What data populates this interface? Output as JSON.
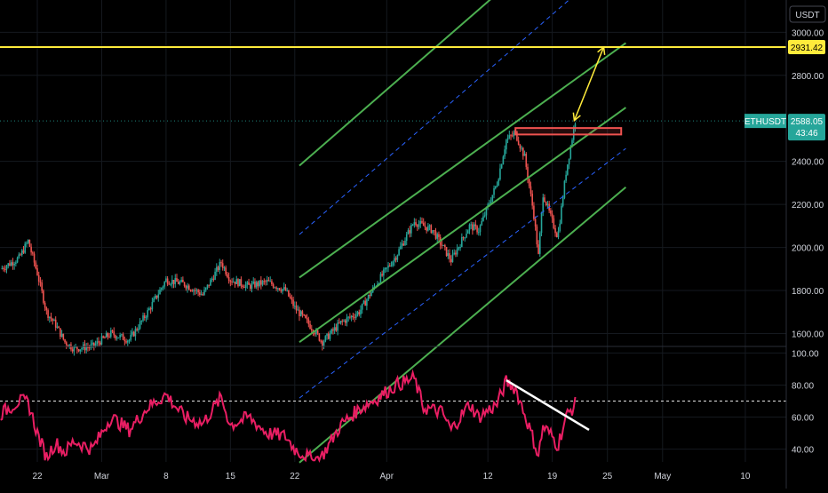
{
  "colors": {
    "background": "#000000",
    "grid": "#15191f",
    "up_candle": "#26a69a",
    "down_candle": "#ef5350",
    "channel": "#4caf50",
    "channel_mid": "#2962ff",
    "resistance": "#ffeb3b",
    "resistance_box": "#ef5350",
    "rsi": "#e91e63",
    "axis_text": "#d1d4dc",
    "ticker_badge": "#26a69a"
  },
  "chart_data": [
    {
      "type": "candlestick",
      "title": "",
      "ylabel": "",
      "ylim": [
        1540,
        3150
      ],
      "x_ticks": [
        {
          "label": "22",
          "day": -10
        },
        {
          "label": "Mar",
          "day": -3
        },
        {
          "label": "8",
          "day": 4
        },
        {
          "label": "15",
          "day": 11
        },
        {
          "label": "22",
          "day": 18
        },
        {
          "label": "Apr",
          "day": 28
        },
        {
          "label": "12",
          "day": 39
        },
        {
          "label": "19",
          "day": 46
        },
        {
          "label": "25",
          "day": 52
        },
        {
          "label": "May",
          "day": 58
        },
        {
          "label": "10",
          "day": 67
        }
      ],
      "y_ticks": [
        1600,
        1800,
        2000,
        2200,
        2400,
        2800,
        3000
      ],
      "currency_label": "USDT",
      "ticker": {
        "symbol": "ETHUSDT",
        "price": "2588.05",
        "countdown": "43:46",
        "value": 2588.05
      },
      "resistance": {
        "label": "2931.42",
        "value": 2931.42
      },
      "price_path": [
        {
          "day": -14,
          "price": 1900
        },
        {
          "day": -12,
          "price": 1950
        },
        {
          "day": -11,
          "price": 2030
        },
        {
          "day": -10,
          "price": 1880
        },
        {
          "day": -9,
          "price": 1700
        },
        {
          "day": -8,
          "price": 1640
        },
        {
          "day": -7,
          "price": 1560
        },
        {
          "day": -6,
          "price": 1530
        },
        {
          "day": -4,
          "price": 1540
        },
        {
          "day": -2,
          "price": 1600
        },
        {
          "day": 0,
          "price": 1570
        },
        {
          "day": 2,
          "price": 1700
        },
        {
          "day": 4,
          "price": 1850
        },
        {
          "day": 6,
          "price": 1830
        },
        {
          "day": 8,
          "price": 1780
        },
        {
          "day": 10,
          "price": 1930
        },
        {
          "day": 11,
          "price": 1850
        },
        {
          "day": 13,
          "price": 1820
        },
        {
          "day": 15,
          "price": 1840
        },
        {
          "day": 17,
          "price": 1800
        },
        {
          "day": 18,
          "price": 1720
        },
        {
          "day": 20,
          "price": 1620
        },
        {
          "day": 21,
          "price": 1560
        },
        {
          "day": 23,
          "price": 1650
        },
        {
          "day": 25,
          "price": 1700
        },
        {
          "day": 27,
          "price": 1840
        },
        {
          "day": 29,
          "price": 1960
        },
        {
          "day": 31,
          "price": 2120
        },
        {
          "day": 33,
          "price": 2080
        },
        {
          "day": 35,
          "price": 1940
        },
        {
          "day": 37,
          "price": 2100
        },
        {
          "day": 38,
          "price": 2080
        },
        {
          "day": 40,
          "price": 2300
        },
        {
          "day": 41,
          "price": 2500
        },
        {
          "day": 42,
          "price": 2530
        },
        {
          "day": 43,
          "price": 2420
        },
        {
          "day": 44,
          "price": 2150
        },
        {
          "day": 44.5,
          "price": 1960
        },
        {
          "day": 45,
          "price": 2250
        },
        {
          "day": 46,
          "price": 2120
        },
        {
          "day": 46.6,
          "price": 2050
        },
        {
          "day": 47.5,
          "price": 2350
        },
        {
          "day": 48.5,
          "price": 2588
        }
      ],
      "channel": {
        "start_day": 18.5,
        "end_day": 54,
        "lines": [
          {
            "start": 2380,
            "end": 3700,
            "style": "solid"
          },
          {
            "start": 2060,
            "end": 3380,
            "style": "dashed"
          },
          {
            "start": 1860,
            "end": 2950,
            "style": "solid"
          },
          {
            "start": 1560,
            "end": 2650,
            "style": "solid"
          },
          {
            "start": 1300,
            "end": 2460,
            "style": "dashed"
          },
          {
            "start": 1000,
            "end": 2280,
            "style": "solid"
          }
        ]
      },
      "resistance_box": {
        "day_start": 42,
        "day_end": 53.5,
        "price_low": 2525,
        "price_high": 2555
      },
      "projection_arrow": {
        "from_day": 48.4,
        "from_price": 2590,
        "to_day": 51.6,
        "to_price": 2931.42
      }
    },
    {
      "type": "line",
      "title": "",
      "ylabel": "",
      "ylim": [
        32,
        103
      ],
      "y_ticks": [
        40,
        60,
        80,
        100
      ],
      "overbought_level": 70,
      "rsi_path": [
        {
          "day": -14,
          "value": 62
        },
        {
          "day": -12,
          "value": 70
        },
        {
          "day": -11,
          "value": 69
        },
        {
          "day": -10,
          "value": 50
        },
        {
          "day": -9,
          "value": 35
        },
        {
          "day": -8,
          "value": 44
        },
        {
          "day": -7,
          "value": 38
        },
        {
          "day": -6,
          "value": 45
        },
        {
          "day": -4,
          "value": 40
        },
        {
          "day": -2,
          "value": 60
        },
        {
          "day": 0,
          "value": 52
        },
        {
          "day": 2,
          "value": 66
        },
        {
          "day": 4,
          "value": 74
        },
        {
          "day": 6,
          "value": 60
        },
        {
          "day": 8,
          "value": 56
        },
        {
          "day": 10,
          "value": 72
        },
        {
          "day": 11,
          "value": 55
        },
        {
          "day": 13,
          "value": 60
        },
        {
          "day": 15,
          "value": 50
        },
        {
          "day": 17,
          "value": 48
        },
        {
          "day": 18,
          "value": 40
        },
        {
          "day": 20,
          "value": 33
        },
        {
          "day": 21,
          "value": 36
        },
        {
          "day": 23,
          "value": 55
        },
        {
          "day": 25,
          "value": 65
        },
        {
          "day": 27,
          "value": 72
        },
        {
          "day": 29,
          "value": 80
        },
        {
          "day": 31,
          "value": 84
        },
        {
          "day": 32,
          "value": 66
        },
        {
          "day": 34,
          "value": 63
        },
        {
          "day": 35,
          "value": 52
        },
        {
          "day": 37,
          "value": 68
        },
        {
          "day": 38,
          "value": 60
        },
        {
          "day": 40,
          "value": 68
        },
        {
          "day": 41,
          "value": 82
        },
        {
          "day": 42,
          "value": 78
        },
        {
          "day": 43,
          "value": 62
        },
        {
          "day": 44,
          "value": 45
        },
        {
          "day": 44.5,
          "value": 36
        },
        {
          "day": 45,
          "value": 54
        },
        {
          "day": 46,
          "value": 48
        },
        {
          "day": 46.6,
          "value": 42
        },
        {
          "day": 47.5,
          "value": 60
        },
        {
          "day": 48.5,
          "value": 68
        }
      ],
      "trendline": {
        "from_day": 41,
        "from_value": 83,
        "to_day": 50,
        "to_value": 52
      }
    }
  ]
}
